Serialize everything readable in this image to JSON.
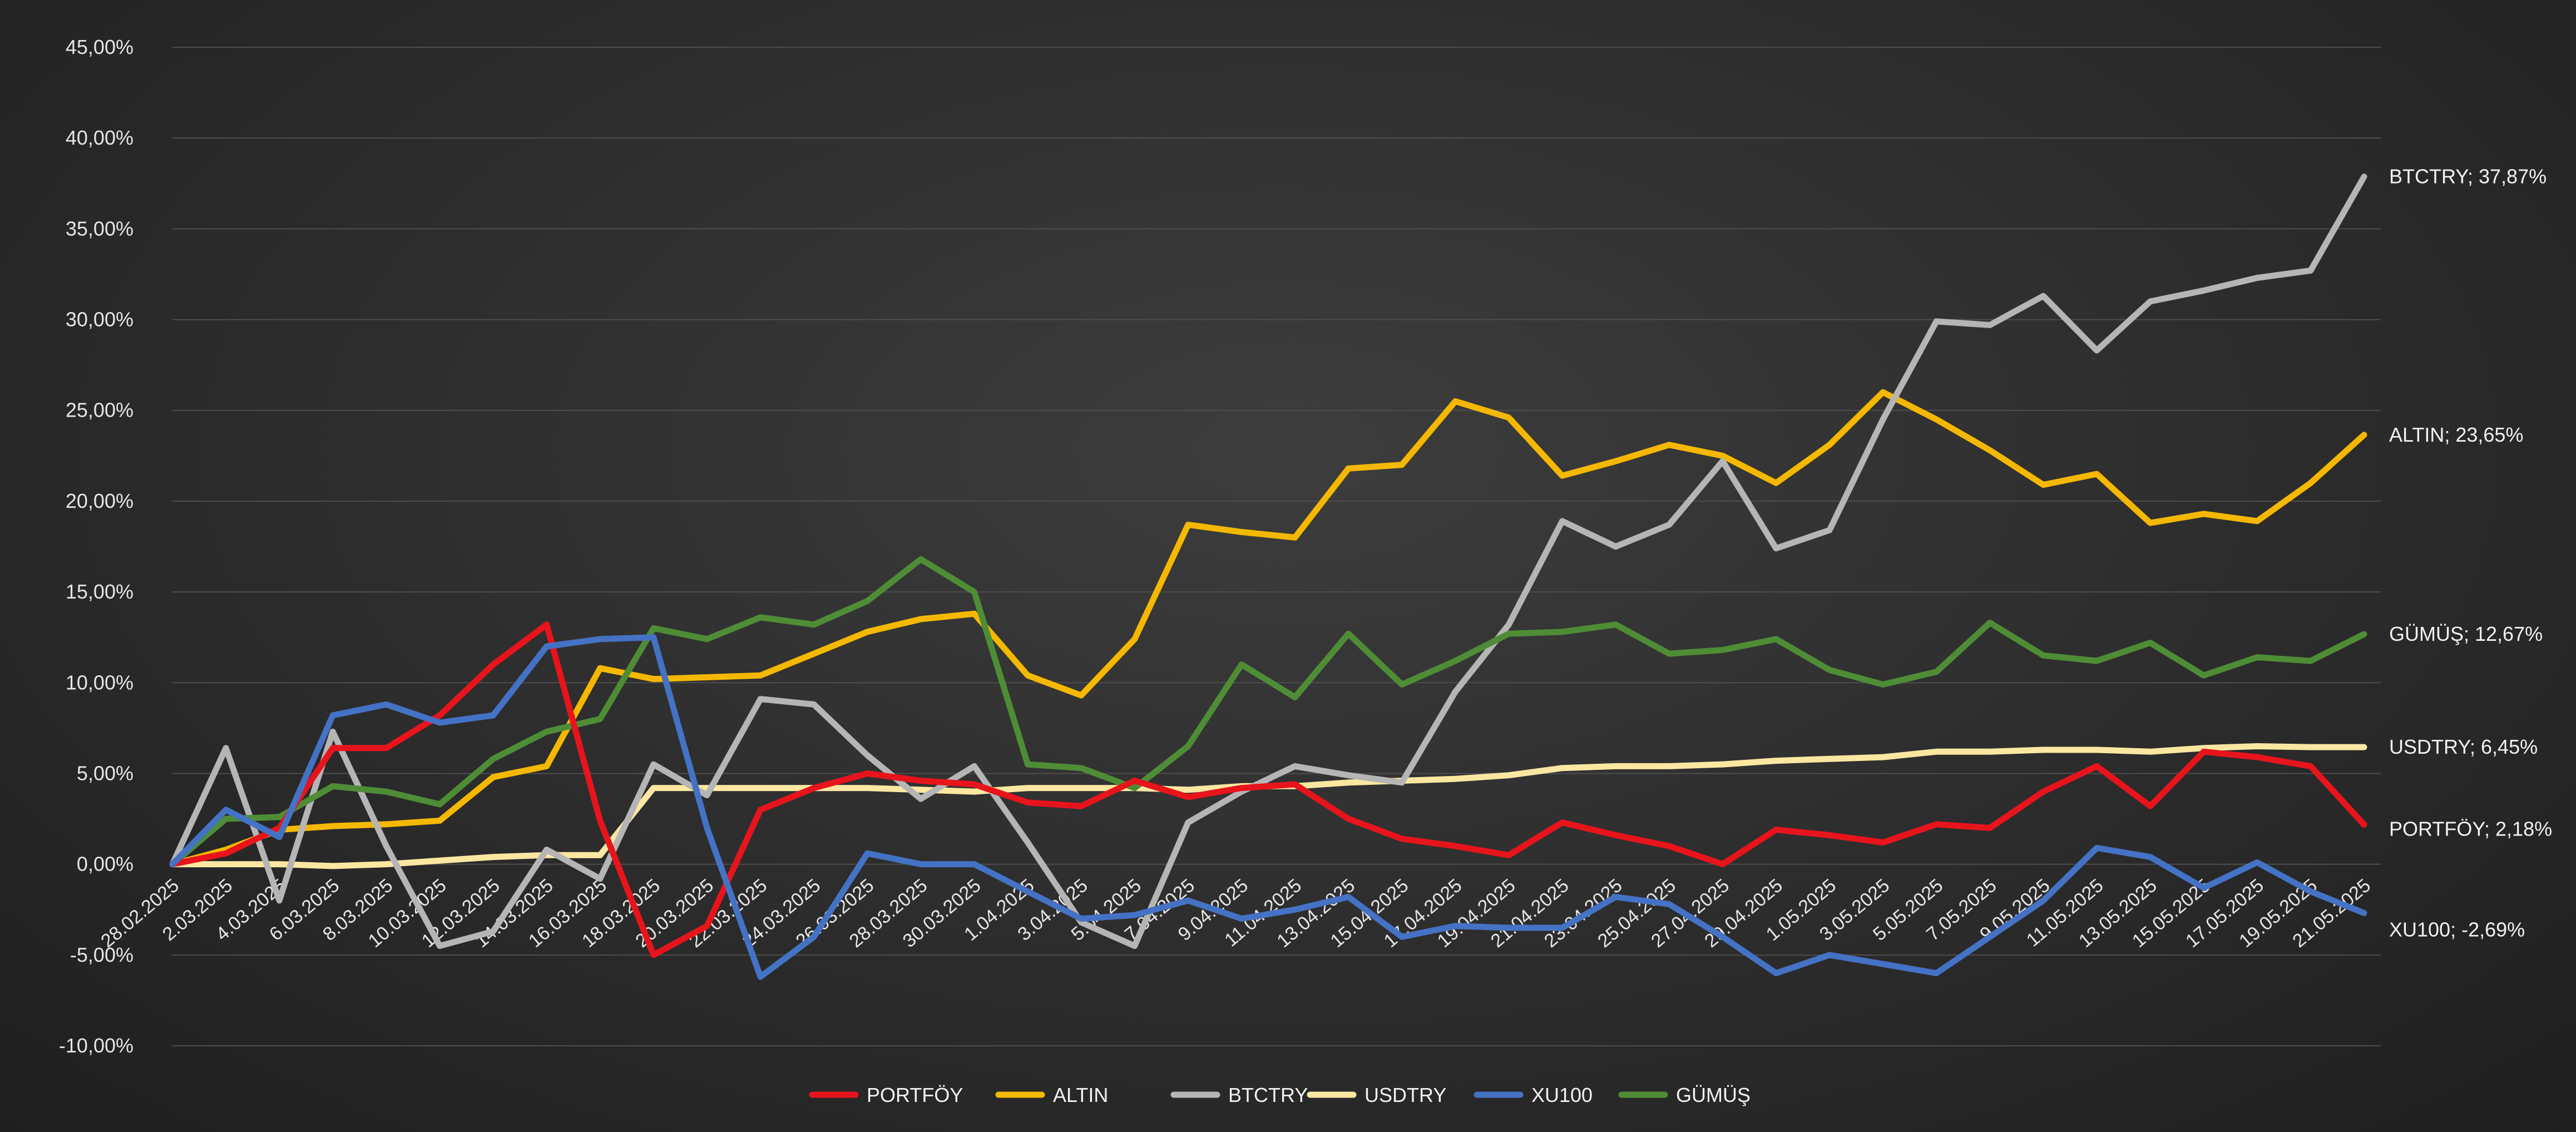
{
  "chart_data": {
    "type": "line",
    "title": "",
    "xlabel": "",
    "ylabel": "",
    "ylim": [
      -10,
      45
    ],
    "yticks": [
      "45,00%",
      "40,00%",
      "35,00%",
      "30,00%",
      "25,00%",
      "20,00%",
      "15,00%",
      "10,00%",
      "5,00%",
      "0,00%",
      "-5,00%",
      "-10,00%"
    ],
    "ytick_values": [
      45,
      40,
      35,
      30,
      25,
      20,
      15,
      10,
      5,
      0,
      -5,
      -10
    ],
    "x": [
      "28.02.2025",
      "2.03.2025",
      "4.03.2025",
      "6.03.2025",
      "8.03.2025",
      "10.03.2025",
      "12.03.2025",
      "14.03.2025",
      "16.03.2025",
      "18.03.2025",
      "20.03.2025",
      "22.03.2025",
      "24.03.2025",
      "26.03.2025",
      "28.03.2025",
      "30.03.2025",
      "1.04.2025",
      "3.04.2025",
      "5.04.2025",
      "7.04.2025",
      "9.04.2025",
      "11.04.2025",
      "13.04.2025",
      "15.04.2025",
      "17.04.2025",
      "19.04.2025",
      "21.04.2025",
      "23.04.2025",
      "25.04.2025",
      "27.04.2025",
      "29.04.2025",
      "1.05.2025",
      "3.05.2025",
      "5.05.2025",
      "7.05.2025",
      "9.05.2025",
      "11.05.2025",
      "13.05.2025",
      "15.05.2025",
      "17.05.2025",
      "19.05.2025",
      "21.05.2025"
    ],
    "grid": true,
    "legend_position": "bottom",
    "series": [
      {
        "name": "PORTFÖY",
        "color": "#e8141c",
        "end_label": "PORTFÖY; 2,18%",
        "values": [
          0.0,
          0.6,
          2.0,
          6.4,
          6.4,
          8.2,
          11.0,
          13.2,
          2.4,
          -5.0,
          -3.4,
          3.0,
          4.2,
          5.0,
          4.6,
          4.4,
          3.4,
          3.2,
          4.6,
          3.7,
          4.2,
          4.4,
          2.5,
          1.4,
          1.0,
          0.5,
          2.3,
          1.6,
          1.0,
          0.0,
          1.9,
          1.6,
          1.2,
          2.2,
          2.0,
          4.0,
          5.4,
          3.2,
          6.2,
          5.9,
          5.4,
          2.18
        ]
      },
      {
        "name": "ALTIN",
        "color": "#f5b800",
        "end_label": "ALTIN; 23,65%",
        "values": [
          0.0,
          0.8,
          1.9,
          2.1,
          2.2,
          2.4,
          4.8,
          5.4,
          10.8,
          10.2,
          10.3,
          10.4,
          11.6,
          12.8,
          13.5,
          13.8,
          10.4,
          9.3,
          12.4,
          18.7,
          18.3,
          18.0,
          21.8,
          22.0,
          25.5,
          24.6,
          21.4,
          22.2,
          23.1,
          22.5,
          21.0,
          23.1,
          26.0,
          24.5,
          22.8,
          20.9,
          21.5,
          18.8,
          19.3,
          18.9,
          21.0,
          23.65
        ]
      },
      {
        "name": "BTCTRY",
        "color": "#b5b5b5",
        "end_label": "BTCTRY; 37,87%",
        "values": [
          0.0,
          6.4,
          -2.0,
          7.3,
          1.0,
          -4.5,
          -3.7,
          0.8,
          -0.8,
          5.5,
          3.8,
          9.1,
          8.8,
          6.0,
          3.6,
          5.4,
          1.2,
          -3.2,
          -4.5,
          2.3,
          4.0,
          5.4,
          4.9,
          4.5,
          9.5,
          13.2,
          18.9,
          17.5,
          18.7,
          22.2,
          17.4,
          18.4,
          24.5,
          29.9,
          29.7,
          31.3,
          28.3,
          31.0,
          31.6,
          32.3,
          32.7,
          37.87
        ]
      },
      {
        "name": "USDTRY",
        "color": "#fbe7a1",
        "end_label": "USDTRY; 6,45%",
        "values": [
          0.0,
          0.0,
          0.0,
          -0.1,
          0.0,
          0.2,
          0.4,
          0.5,
          0.5,
          4.2,
          4.2,
          4.2,
          4.2,
          4.2,
          4.1,
          4.0,
          4.2,
          4.2,
          4.2,
          4.1,
          4.3,
          4.3,
          4.5,
          4.6,
          4.7,
          4.9,
          5.3,
          5.4,
          5.4,
          5.5,
          5.7,
          5.8,
          5.9,
          6.2,
          6.2,
          6.3,
          6.3,
          6.2,
          6.4,
          6.5,
          6.45,
          6.45
        ]
      },
      {
        "name": "XU100",
        "color": "#4472c4",
        "end_label": "XU100; -2,69%",
        "values": [
          0.0,
          3.0,
          1.5,
          8.2,
          8.8,
          7.8,
          8.2,
          12.0,
          12.4,
          12.5,
          2.0,
          -6.2,
          -4.0,
          0.6,
          0.0,
          0.0,
          -1.5,
          -3.0,
          -2.8,
          -2.0,
          -3.0,
          -2.5,
          -1.8,
          -4.0,
          -3.4,
          -3.5,
          -3.5,
          -1.8,
          -2.2,
          -4.0,
          -6.0,
          -5.0,
          -5.5,
          -6.0,
          -4.0,
          -2.0,
          0.9,
          0.4,
          -1.3,
          0.1,
          -1.5,
          -2.69
        ]
      },
      {
        "name": "GÜMÜŞ",
        "color": "#4e8d36",
        "end_label": "GÜMÜŞ; 12,67%",
        "values": [
          0.0,
          2.5,
          2.6,
          4.3,
          4.0,
          3.3,
          5.8,
          7.3,
          8.0,
          13.0,
          12.4,
          13.6,
          13.2,
          14.5,
          16.8,
          15.0,
          5.5,
          5.3,
          4.2,
          6.5,
          11.0,
          9.2,
          12.7,
          9.9,
          11.2,
          12.7,
          12.8,
          13.2,
          11.6,
          11.8,
          12.4,
          10.7,
          9.9,
          10.6,
          13.3,
          11.5,
          11.2,
          12.2,
          10.4,
          11.4,
          11.2,
          12.67
        ]
      }
    ]
  }
}
